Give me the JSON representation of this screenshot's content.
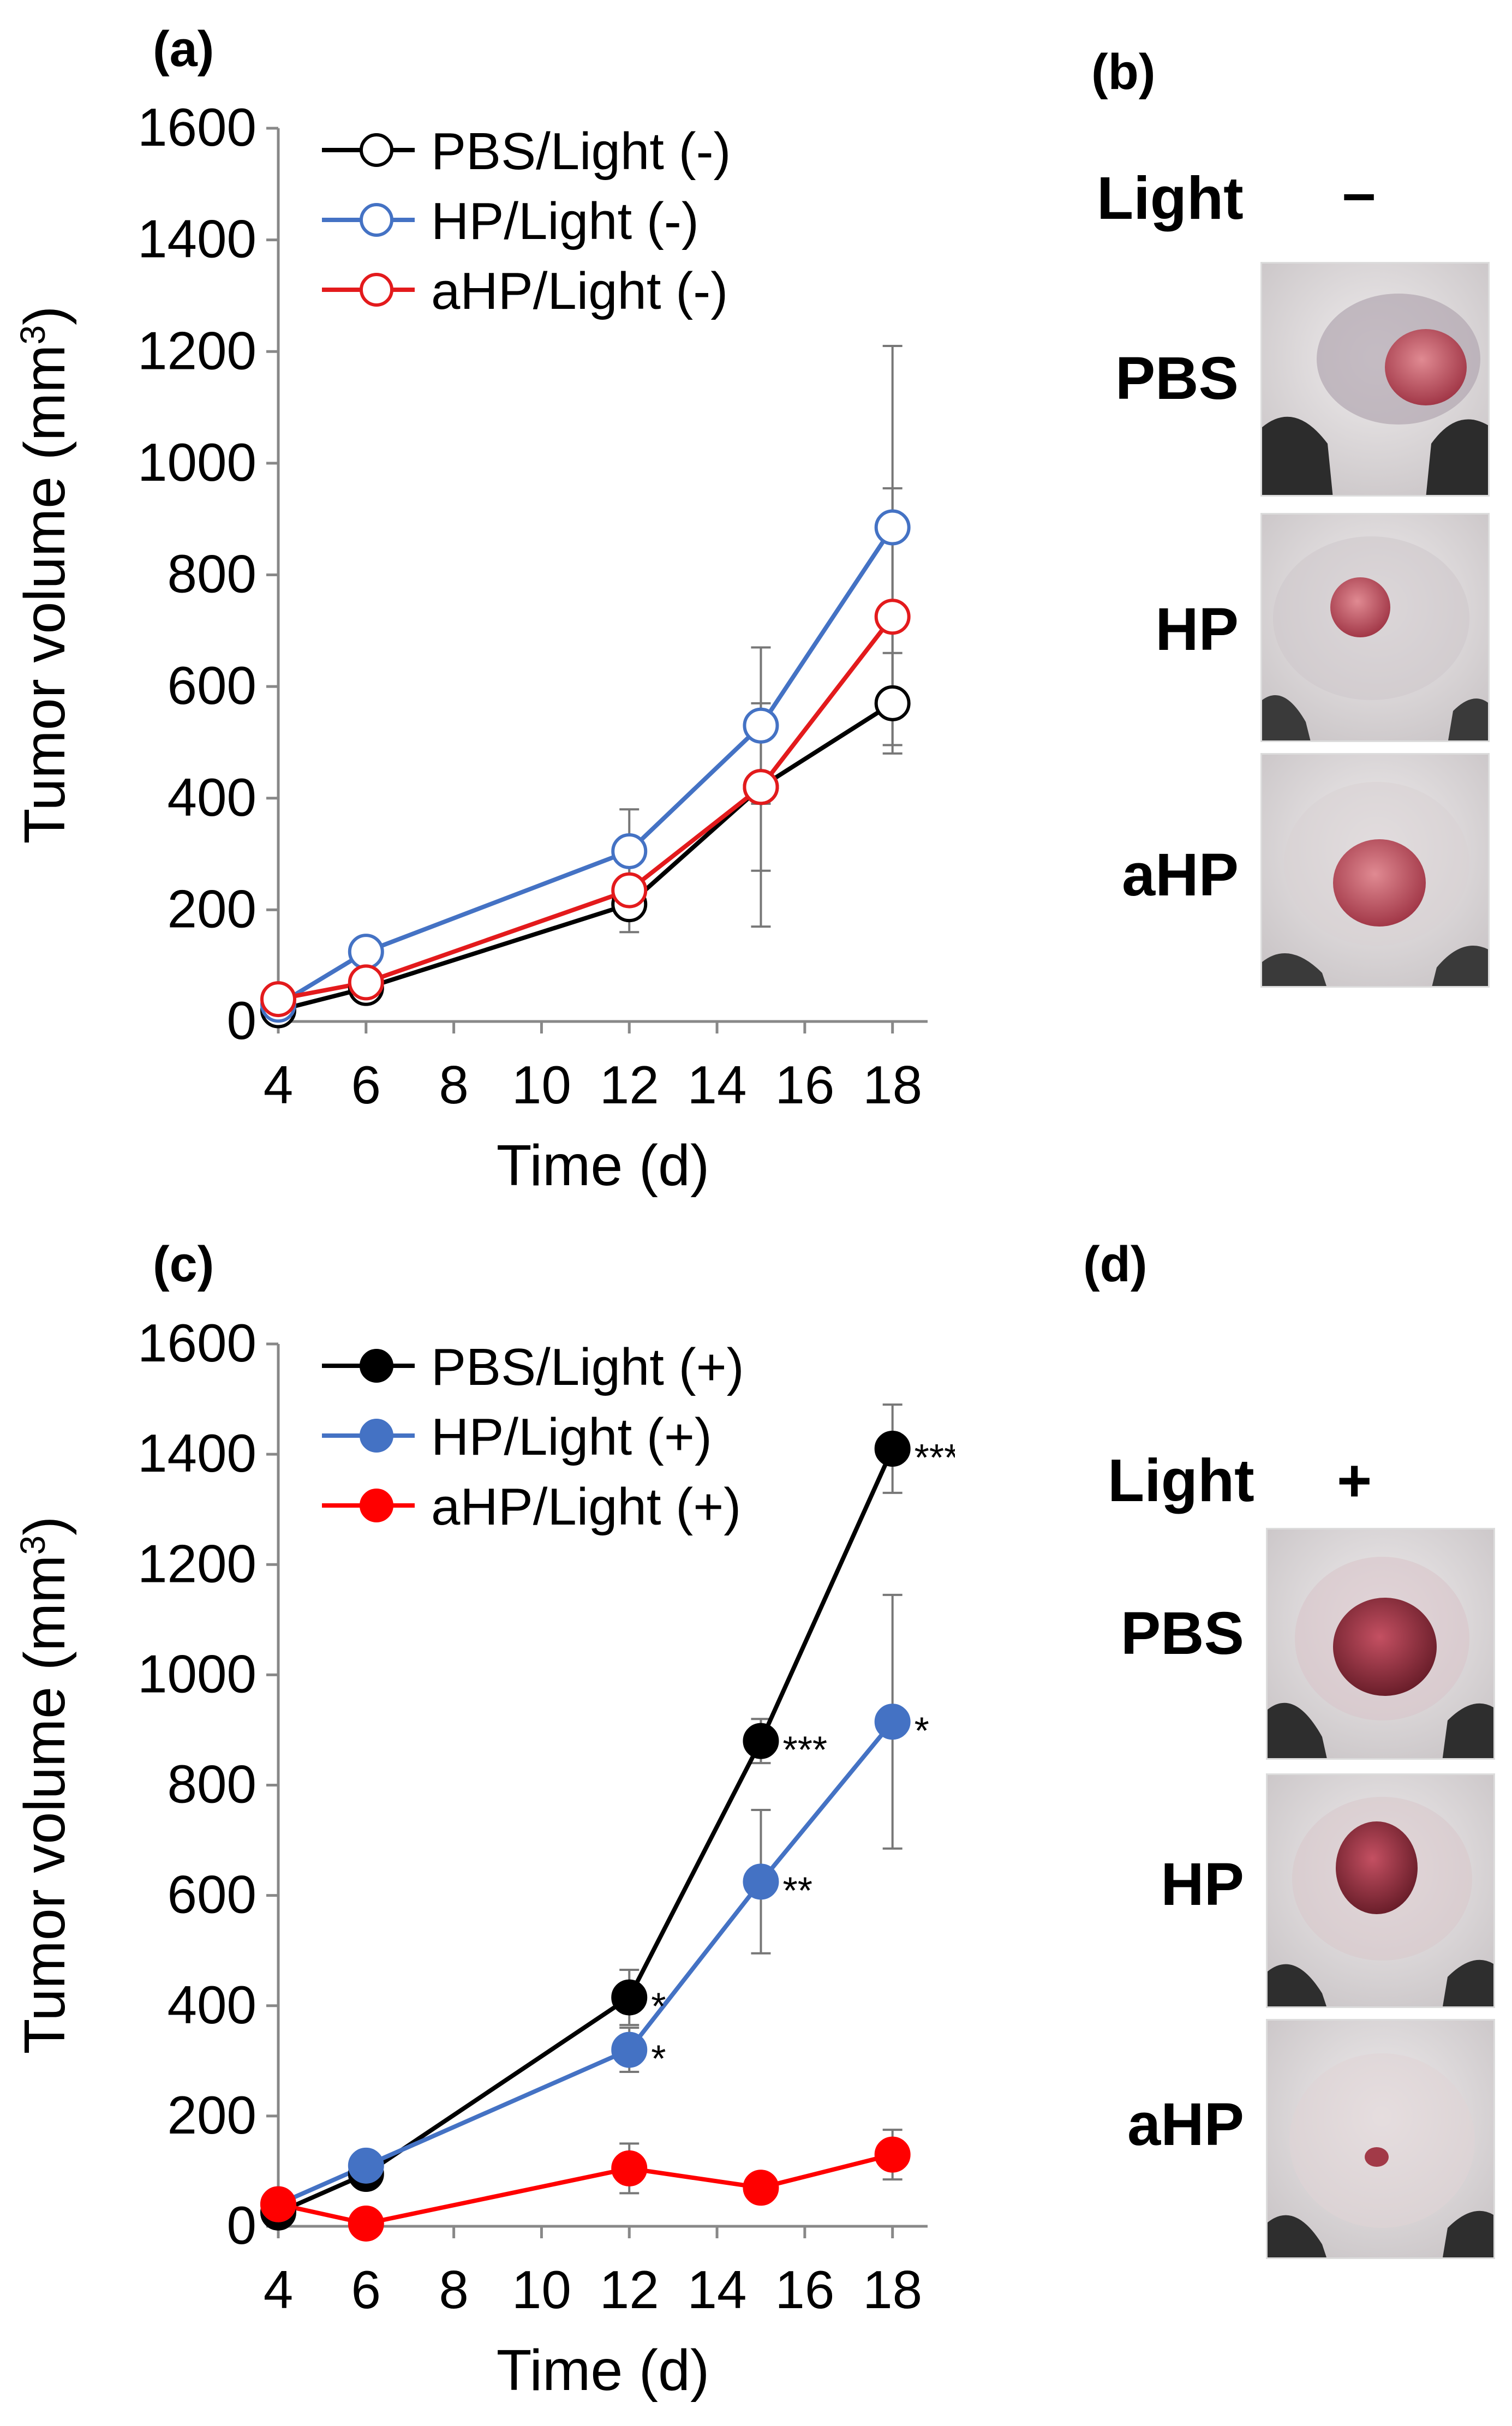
{
  "panels": {
    "a": "(a)",
    "b": "(b)",
    "c": "(c)",
    "d": "(d)"
  },
  "chart_data": [
    {
      "type": "line",
      "panel": "(a)",
      "xlabel": "Time (d)",
      "ylabel": "Tumor volume (mm",
      "ylabel_sup": "3",
      "ylabel_close": ")",
      "xlim": [
        4,
        18.8
      ],
      "ylim": [
        0,
        1600
      ],
      "xticks": [
        4,
        6,
        8,
        10,
        12,
        14,
        16,
        18
      ],
      "yticks": [
        0,
        200,
        400,
        600,
        800,
        1000,
        1200,
        1400,
        1600
      ],
      "legend_position": "top-left",
      "marker": "open-circle",
      "series": [
        {
          "name": "PBS/Light (-)",
          "color": "#000000",
          "x": [
            4,
            6,
            12,
            15,
            18
          ],
          "y": [
            20,
            60,
            210,
            420,
            570
          ],
          "err": [
            10,
            15,
            50,
            250,
            90
          ],
          "sig": [
            "",
            "",
            "",
            "",
            ""
          ]
        },
        {
          "name": "HP/Light (-)",
          "color": "#4472C4",
          "x": [
            4,
            6,
            12,
            15,
            18
          ],
          "y": [
            30,
            125,
            305,
            530,
            885
          ],
          "err": [
            10,
            20,
            75,
            140,
            325
          ],
          "sig": [
            "",
            "",
            "",
            "",
            ""
          ]
        },
        {
          "name": "aHP/Light (-)",
          "color": "#E31A1C",
          "x": [
            4,
            6,
            12,
            15,
            18
          ],
          "y": [
            40,
            70,
            235,
            420,
            725
          ],
          "err": [
            10,
            15,
            50,
            150,
            230
          ],
          "sig": [
            "",
            "",
            "",
            "",
            ""
          ]
        }
      ]
    },
    {
      "type": "line",
      "panel": "(c)",
      "xlabel": "Time (d)",
      "ylabel": "Tumor volume (mm",
      "ylabel_sup": "3",
      "ylabel_close": ")",
      "xlim": [
        4,
        18.8
      ],
      "ylim": [
        0,
        1600
      ],
      "xticks": [
        4,
        6,
        8,
        10,
        12,
        14,
        16,
        18
      ],
      "yticks": [
        0,
        200,
        400,
        600,
        800,
        1000,
        1200,
        1400,
        1600
      ],
      "legend_position": "top-left",
      "marker": "filled-circle",
      "series": [
        {
          "name": "PBS/Light (+)",
          "color": "#000000",
          "x": [
            4,
            6,
            12,
            15,
            18
          ],
          "y": [
            25,
            95,
            415,
            880,
            1410
          ],
          "err": [
            10,
            20,
            50,
            40,
            80
          ],
          "sig": [
            "",
            "",
            "*",
            "***",
            "***"
          ]
        },
        {
          "name": "HP/Light (+)",
          "color": "#4472C4",
          "x": [
            4,
            6,
            12,
            15,
            18
          ],
          "y": [
            40,
            110,
            320,
            625,
            915
          ],
          "err": [
            10,
            20,
            40,
            130,
            230
          ],
          "sig": [
            "",
            "",
            "*",
            "**",
            "*"
          ]
        },
        {
          "name": "aHP/Light (+)",
          "color": "#FF0000",
          "x": [
            4,
            6,
            12,
            15,
            18
          ],
          "y": [
            40,
            5,
            105,
            70,
            130
          ],
          "err": [
            10,
            5,
            45,
            20,
            45
          ],
          "sig": [
            "",
            "",
            "",
            "",
            ""
          ]
        }
      ]
    }
  ],
  "photos_b": {
    "light_label": "Light",
    "light_state": "–",
    "rows": [
      "PBS",
      "HP",
      "aHP"
    ]
  },
  "photos_d": {
    "light_label": "Light",
    "light_state": "+",
    "rows": [
      "PBS",
      "HP",
      "aHP"
    ]
  },
  "colors": {
    "skin": "#e8e4e4",
    "tumor": "#c23a4a",
    "shadow": "#2a2a2a"
  }
}
